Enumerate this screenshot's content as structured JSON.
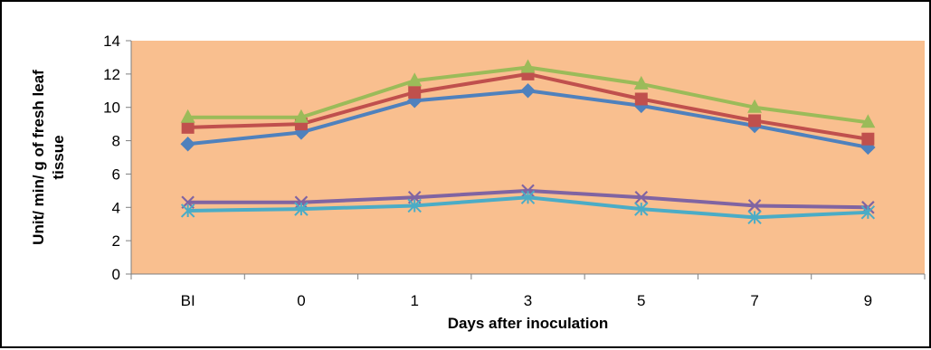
{
  "chart_data": {
    "type": "line",
    "title": "",
    "xlabel": "Days after inoculation",
    "ylabel": [
      "Unit/ min/ g of fresh leaf",
      "tissue"
    ],
    "categories": [
      "BI",
      "0",
      "1",
      "3",
      "5",
      "7",
      "9"
    ],
    "ylim": [
      0,
      14
    ],
    "yticks": [
      0,
      2,
      4,
      6,
      8,
      10,
      12,
      14
    ],
    "grid": false,
    "legend": "none",
    "plot_background": "#F9BF8F",
    "series": [
      {
        "color": "#4F81BD",
        "marker": "diamond",
        "values": [
          7.8,
          8.5,
          10.4,
          11.0,
          10.1,
          8.9,
          7.6
        ]
      },
      {
        "color": "#C0504D",
        "marker": "square",
        "values": [
          8.8,
          9.0,
          10.9,
          12.0,
          10.5,
          9.2,
          8.1
        ]
      },
      {
        "color": "#9BBB59",
        "marker": "triangle",
        "values": [
          9.4,
          9.4,
          11.6,
          12.4,
          11.4,
          10.0,
          9.1
        ]
      },
      {
        "color": "#8064A2",
        "marker": "x",
        "values": [
          4.3,
          4.3,
          4.6,
          5.0,
          4.6,
          4.1,
          4.0
        ]
      },
      {
        "color": "#4BACC6",
        "marker": "star",
        "values": [
          3.8,
          3.9,
          4.1,
          4.6,
          3.9,
          3.4,
          3.7
        ]
      }
    ]
  }
}
